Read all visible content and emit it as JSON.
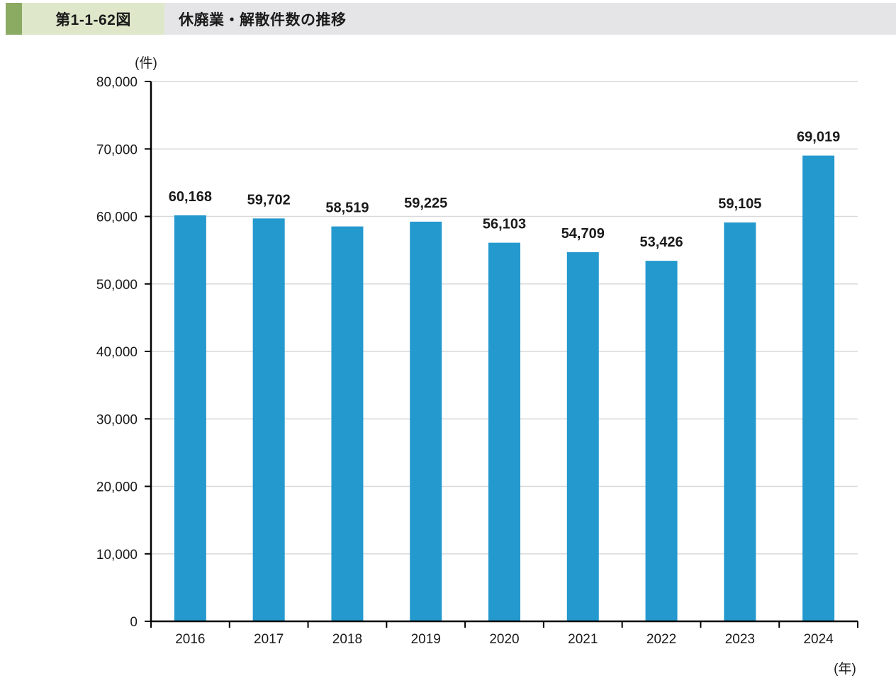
{
  "header": {
    "figure_label": "第1-1-62図",
    "title": "休廃業・解散件数の推移"
  },
  "colors": {
    "bar_blue": "#2499CE",
    "header_accent_green": "#8BAA62",
    "header_label_bg": "#DEE7CA",
    "header_title_bg": "#E5E5E7",
    "gridline": "#D9D9D9",
    "axis": "#000000",
    "text": "#1A1A1A"
  },
  "chart_data": {
    "type": "bar",
    "title": "休廃業・解散件数の推移",
    "unit_y": "(件)",
    "unit_x": "(年)",
    "categories": [
      "2016",
      "2017",
      "2018",
      "2019",
      "2020",
      "2021",
      "2022",
      "2023",
      "2024"
    ],
    "values": [
      60168,
      59702,
      58519,
      59225,
      56103,
      54709,
      53426,
      59105,
      69019
    ],
    "value_labels": [
      "60,168",
      "59,702",
      "58,519",
      "59,225",
      "56,103",
      "54,709",
      "53,426",
      "59,105",
      "69,019"
    ],
    "ylim": [
      0,
      80000
    ],
    "ytick_interval": 10000,
    "ytick_labels": [
      "0",
      "10,000",
      "20,000",
      "30,000",
      "40,000",
      "50,000",
      "60,000",
      "70,000",
      "80,000"
    ],
    "grid": true,
    "legend": "none",
    "bar_color": "#2499CE"
  }
}
